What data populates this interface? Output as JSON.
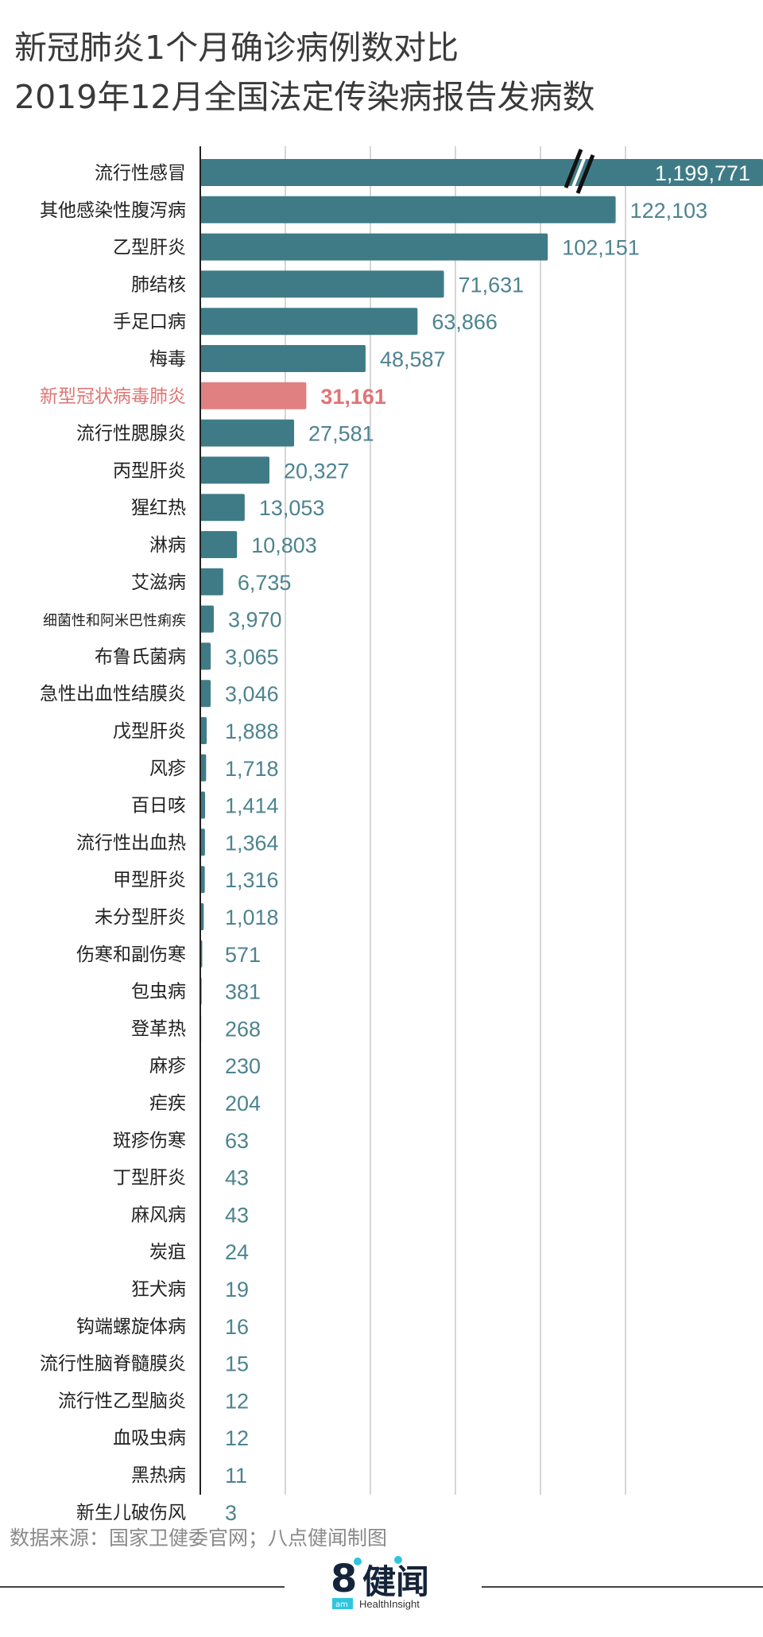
{
  "title_line1": "新冠肺炎1个月确诊病例数对比",
  "title_line2": "2019年12月全国法定传染病报告发病数",
  "source": "数据来源：国家卫健委官网；八点健闻制图",
  "logo": {
    "mark": "8°健闻",
    "sub": "HealthInsight",
    "badge": "am"
  },
  "colors": {
    "bar": "#3f7b87",
    "highlight": "#e08080",
    "value_text": "#4d8390",
    "label_text": "#222222",
    "highlight_text": "#e07575",
    "grid": "#d6d6d6"
  },
  "chart_data": {
    "type": "bar",
    "orientation": "horizontal",
    "axis_break": "on first bar (流行性感冒)",
    "grid": true,
    "highlight_category": "新型冠状病毒肺炎",
    "categories": [
      "流行性感冒",
      "其他感染性腹泻病",
      "乙型肝炎",
      "肺结核",
      "手足口病",
      "梅毒",
      "新型冠状病毒肺炎",
      "流行性腮腺炎",
      "丙型肝炎",
      "猩红热",
      "淋病",
      "艾滋病",
      "细菌性和阿米巴性痢疾",
      "布鲁氏菌病",
      "急性出血性结膜炎",
      "戊型肝炎",
      "风疹",
      "百日咳",
      "流行性出血热",
      "甲型肝炎",
      "未分型肝炎",
      "伤寒和副伤寒",
      "包虫病",
      "登革热",
      "麻疹",
      "疟疾",
      "斑疹伤寒",
      "丁型肝炎",
      "麻风病",
      "炭疽",
      "狂犬病",
      "钩端螺旋体病",
      "流行性脑脊髓膜炎",
      "流行性乙型脑炎",
      "血吸虫病",
      "黑热病",
      "新生儿破伤风"
    ],
    "values": [
      1199771,
      122103,
      102151,
      71631,
      63866,
      48587,
      31161,
      27581,
      20327,
      13053,
      10803,
      6735,
      3970,
      3065,
      3046,
      1888,
      1718,
      1414,
      1364,
      1316,
      1018,
      571,
      381,
      268,
      230,
      204,
      63,
      43,
      43,
      24,
      19,
      16,
      15,
      12,
      12,
      11,
      3
    ],
    "value_labels": [
      "1,199,771",
      "122,103",
      "102,151",
      "71,631",
      "63,866",
      "48,587",
      "31,161",
      "27,581",
      "20,327",
      "13,053",
      "10,803",
      "6,735",
      "3,970",
      "3,065",
      "3,046",
      "1,888",
      "1,718",
      "1,414",
      "1,364",
      "1,316",
      "1,018",
      "571",
      "381",
      "268",
      "230",
      "204",
      "63",
      "43",
      "43",
      "24",
      "19",
      "16",
      "15",
      "12",
      "12",
      "11",
      "3"
    ],
    "xlim": [
      0,
      150000
    ]
  }
}
